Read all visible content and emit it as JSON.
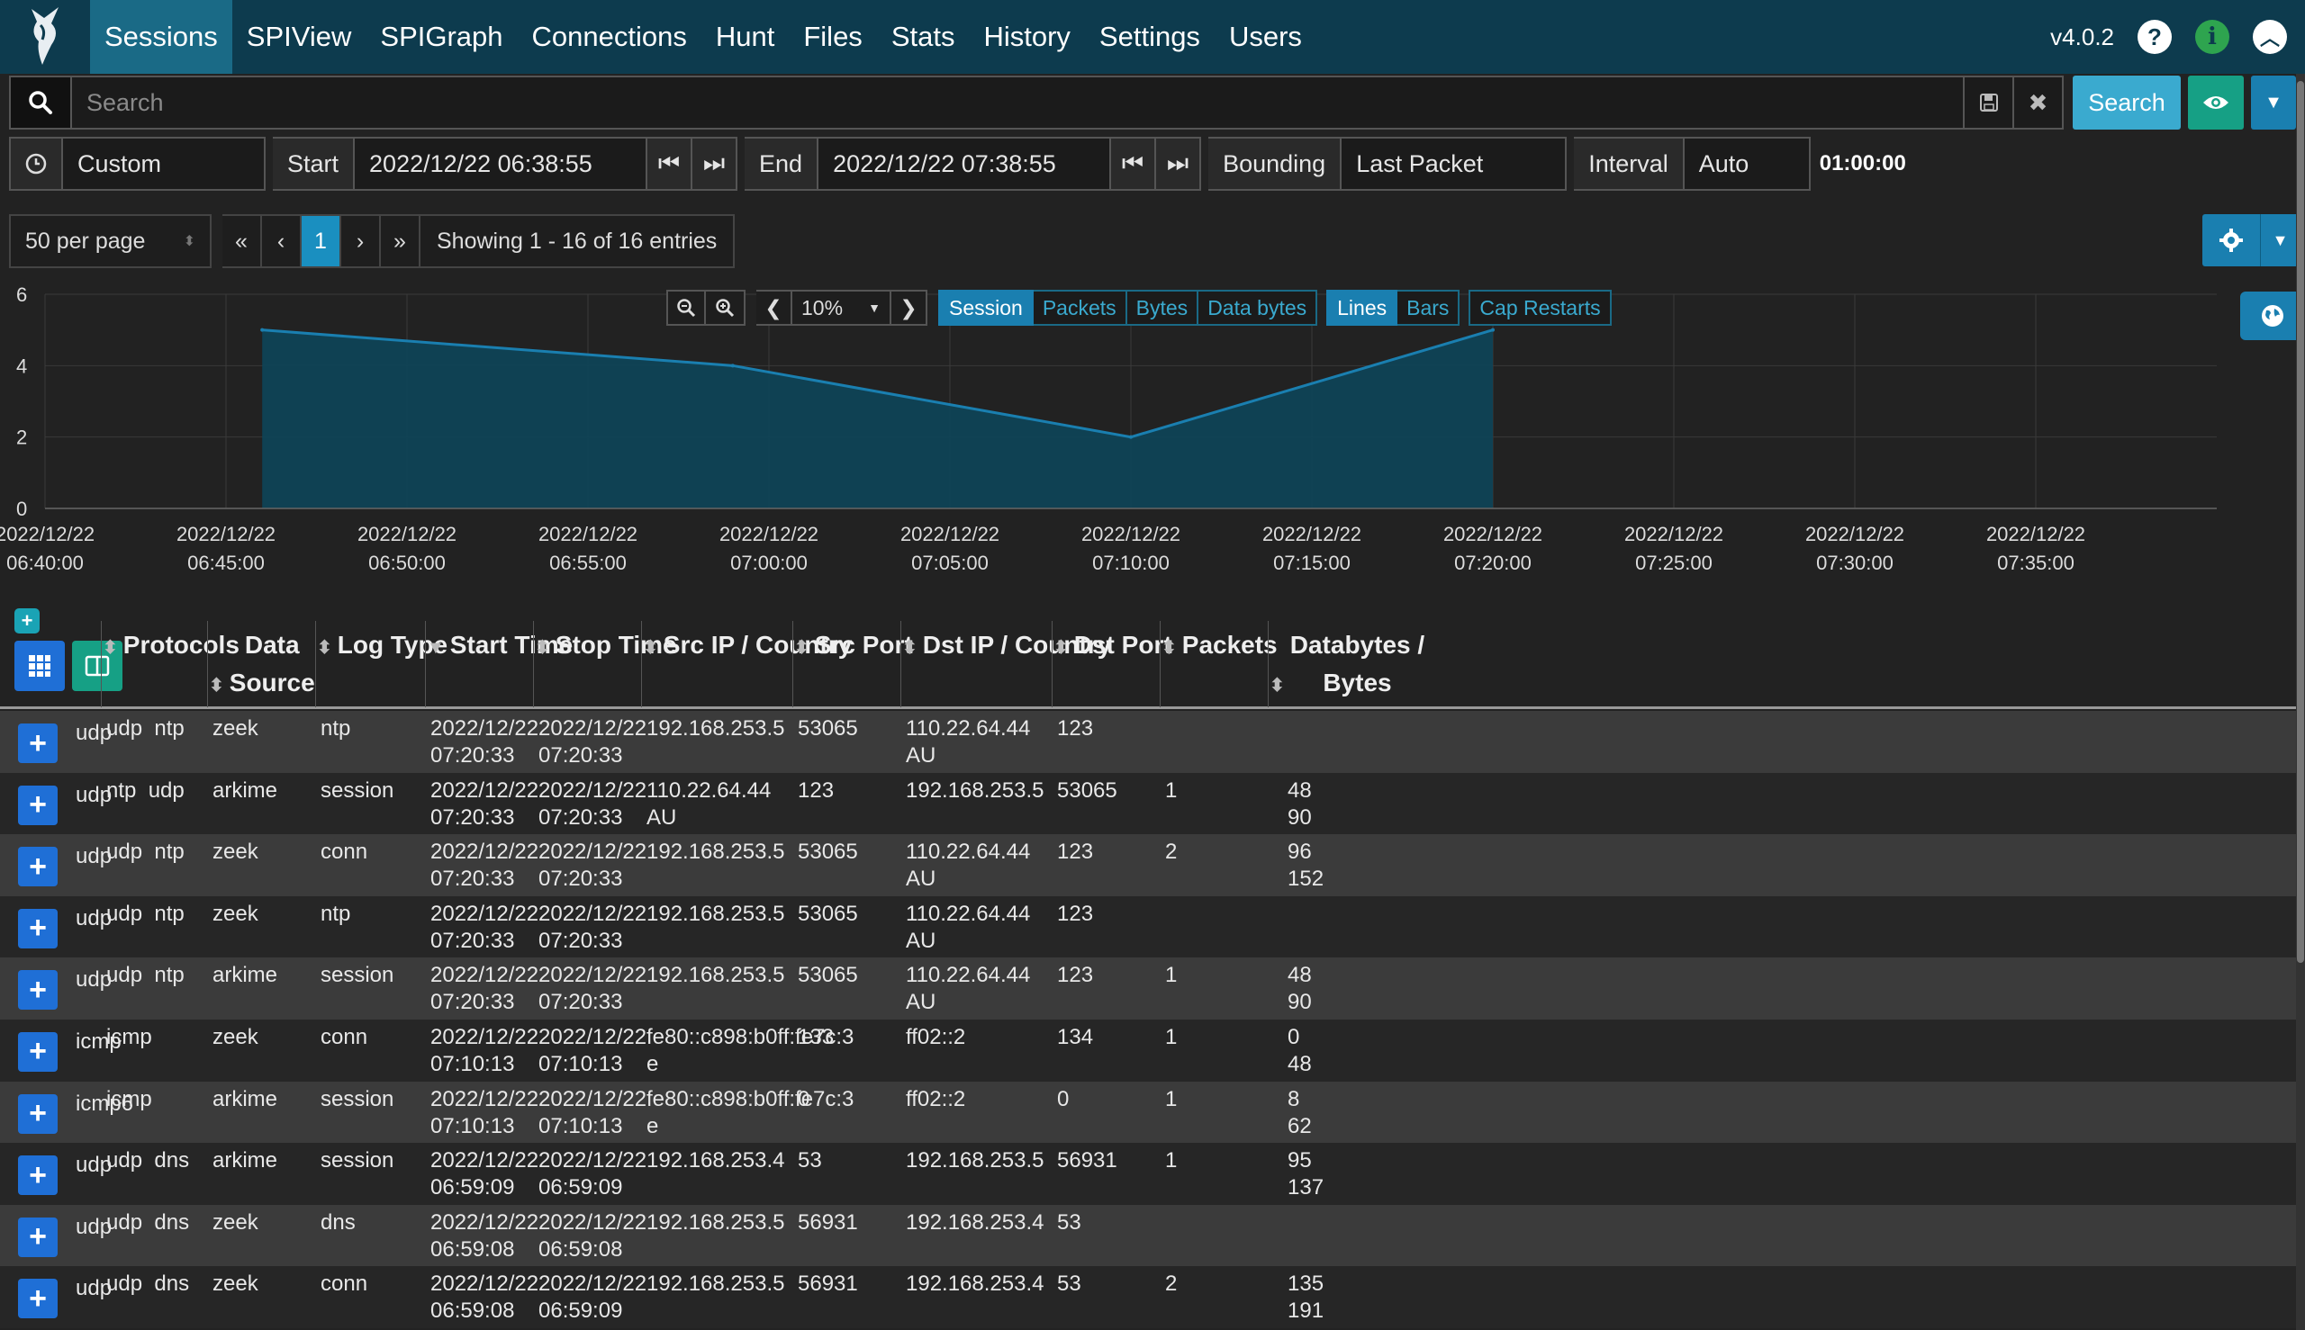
{
  "nav": {
    "items": [
      "Sessions",
      "SPIView",
      "SPIGraph",
      "Connections",
      "Hunt",
      "Files",
      "Stats",
      "History",
      "Settings",
      "Users"
    ],
    "version": "v4.0.2"
  },
  "search": {
    "placeholder": "Search",
    "button_label": "Search"
  },
  "time": {
    "range_label": "Custom",
    "start_label": "Start",
    "start_value": "2022/12/22 06:38:55",
    "end_label": "End",
    "end_value": "2022/12/22 07:38:55",
    "bounding_label": "Bounding",
    "bounding_value": "Last Packet",
    "interval_label": "Interval",
    "interval_value": "Auto",
    "duration": "01:00:00"
  },
  "pager": {
    "per_page": "50 per page",
    "first": "«",
    "prev": "‹",
    "page": "1",
    "next": "›",
    "last": "»",
    "info": "Showing 1 - 16 of 16 entries"
  },
  "chart_tools": {
    "zoom_level": "10%",
    "toggles": [
      "Session",
      "Packets",
      "Bytes",
      "Data bytes"
    ],
    "styles": [
      "Lines",
      "Bars"
    ],
    "cap_restarts": "Cap Restarts"
  },
  "chart_data": {
    "type": "area",
    "x_ticks": [
      [
        "2022/12/22",
        "06:40:00"
      ],
      [
        "2022/12/22",
        "06:45:00"
      ],
      [
        "2022/12/22",
        "06:50:00"
      ],
      [
        "2022/12/22",
        "06:55:00"
      ],
      [
        "2022/12/22",
        "07:00:00"
      ],
      [
        "2022/12/22",
        "07:05:00"
      ],
      [
        "2022/12/22",
        "07:10:00"
      ],
      [
        "2022/12/22",
        "07:15:00"
      ],
      [
        "2022/12/22",
        "07:20:00"
      ],
      [
        "2022/12/22",
        "07:25:00"
      ],
      [
        "2022/12/22",
        "07:30:00"
      ],
      [
        "2022/12/22",
        "07:35:00"
      ]
    ],
    "y_ticks": [
      "0",
      "2",
      "4",
      "6"
    ],
    "ylim": [
      0,
      6
    ],
    "xlim": [
      "06:40:00",
      "07:40:00"
    ],
    "points": [
      {
        "x": "06:46:00",
        "y": 5
      },
      {
        "x": "06:59:00",
        "y": 4
      },
      {
        "x": "07:10:00",
        "y": 2
      },
      {
        "x": "07:20:00",
        "y": 5
      }
    ]
  },
  "table": {
    "headers": [
      {
        "label": "Protocols"
      },
      {
        "label": "Data\nSource"
      },
      {
        "label": "Log Type"
      },
      {
        "label": "Start Time"
      },
      {
        "label": "Stop Time"
      },
      {
        "label": "Src IP / Country"
      },
      {
        "label": "Src Port"
      },
      {
        "label": "Dst IP / Country"
      },
      {
        "label": "Dst Port"
      },
      {
        "label": "Packets"
      },
      {
        "label": "Databytes /\nBytes"
      }
    ],
    "rows": [
      {
        "proto": "udp",
        "protocols": "udp  ntp",
        "source": "zeek",
        "log": "ntp",
        "start": "2022/12/22\n07:20:33",
        "stop": "2022/12/22\n07:20:33",
        "src": "192.168.253.5",
        "sport": "53065",
        "dst": "110.22.64.44\nAU",
        "dport": "123",
        "packets": "",
        "bytes": ""
      },
      {
        "proto": "udp",
        "protocols": "ntp  udp",
        "source": "arkime",
        "log": "session",
        "start": "2022/12/22\n07:20:33",
        "stop": "2022/12/22\n07:20:33",
        "src": "110.22.64.44\nAU",
        "sport": "123",
        "dst": "192.168.253.5",
        "dport": "53065",
        "packets": "1",
        "bytes": "48\n90"
      },
      {
        "proto": "udp",
        "protocols": "udp  ntp",
        "source": "zeek",
        "log": "conn",
        "start": "2022/12/22\n07:20:33",
        "stop": "2022/12/22\n07:20:33",
        "src": "192.168.253.5",
        "sport": "53065",
        "dst": "110.22.64.44\nAU",
        "dport": "123",
        "packets": "2",
        "bytes": "96\n152"
      },
      {
        "proto": "udp",
        "protocols": "udp  ntp",
        "source": "zeek",
        "log": "ntp",
        "start": "2022/12/22\n07:20:33",
        "stop": "2022/12/22\n07:20:33",
        "src": "192.168.253.5",
        "sport": "53065",
        "dst": "110.22.64.44\nAU",
        "dport": "123",
        "packets": "",
        "bytes": ""
      },
      {
        "proto": "udp",
        "protocols": "udp  ntp",
        "source": "arkime",
        "log": "session",
        "start": "2022/12/22\n07:20:33",
        "stop": "2022/12/22\n07:20:33",
        "src": "192.168.253.5",
        "sport": "53065",
        "dst": "110.22.64.44\nAU",
        "dport": "123",
        "packets": "1",
        "bytes": "48\n90"
      },
      {
        "proto": "icmp",
        "protocols": "icmp",
        "source": "zeek",
        "log": "conn",
        "start": "2022/12/22\n07:10:13",
        "stop": "2022/12/22\n07:10:13",
        "src": "fe80::c898:b0ff:fe7c:3\ne",
        "sport": "133",
        "dst": "ff02::2",
        "dport": "134",
        "packets": "1",
        "bytes": "0\n48"
      },
      {
        "proto": "icmp6",
        "protocols": "icmp",
        "source": "arkime",
        "log": "session",
        "start": "2022/12/22\n07:10:13",
        "stop": "2022/12/22\n07:10:13",
        "src": "fe80::c898:b0ff:fe7c:3\ne",
        "sport": "0",
        "dst": "ff02::2",
        "dport": "0",
        "packets": "1",
        "bytes": "8\n62"
      },
      {
        "proto": "udp",
        "protocols": "udp  dns",
        "source": "arkime",
        "log": "session",
        "start": "2022/12/22\n06:59:09",
        "stop": "2022/12/22\n06:59:09",
        "src": "192.168.253.4",
        "sport": "53",
        "dst": "192.168.253.5",
        "dport": "56931",
        "packets": "1",
        "bytes": "95\n137"
      },
      {
        "proto": "udp",
        "protocols": "udp  dns",
        "source": "zeek",
        "log": "dns",
        "start": "2022/12/22\n06:59:08",
        "stop": "2022/12/22\n06:59:08",
        "src": "192.168.253.5",
        "sport": "56931",
        "dst": "192.168.253.4",
        "dport": "53",
        "packets": "",
        "bytes": ""
      },
      {
        "proto": "udp",
        "protocols": "udp  dns",
        "source": "zeek",
        "log": "conn",
        "start": "2022/12/22\n06:59:08",
        "stop": "2022/12/22\n06:59:09",
        "src": "192.168.253.5",
        "sport": "56931",
        "dst": "192.168.253.4",
        "dport": "53",
        "packets": "2",
        "bytes": "135\n191"
      }
    ]
  },
  "colors": {
    "navbar": "#0d3b4e",
    "accent": "#3aaacf",
    "chart_line": "#1a7fb0",
    "chart_fill": "#0f4356"
  }
}
